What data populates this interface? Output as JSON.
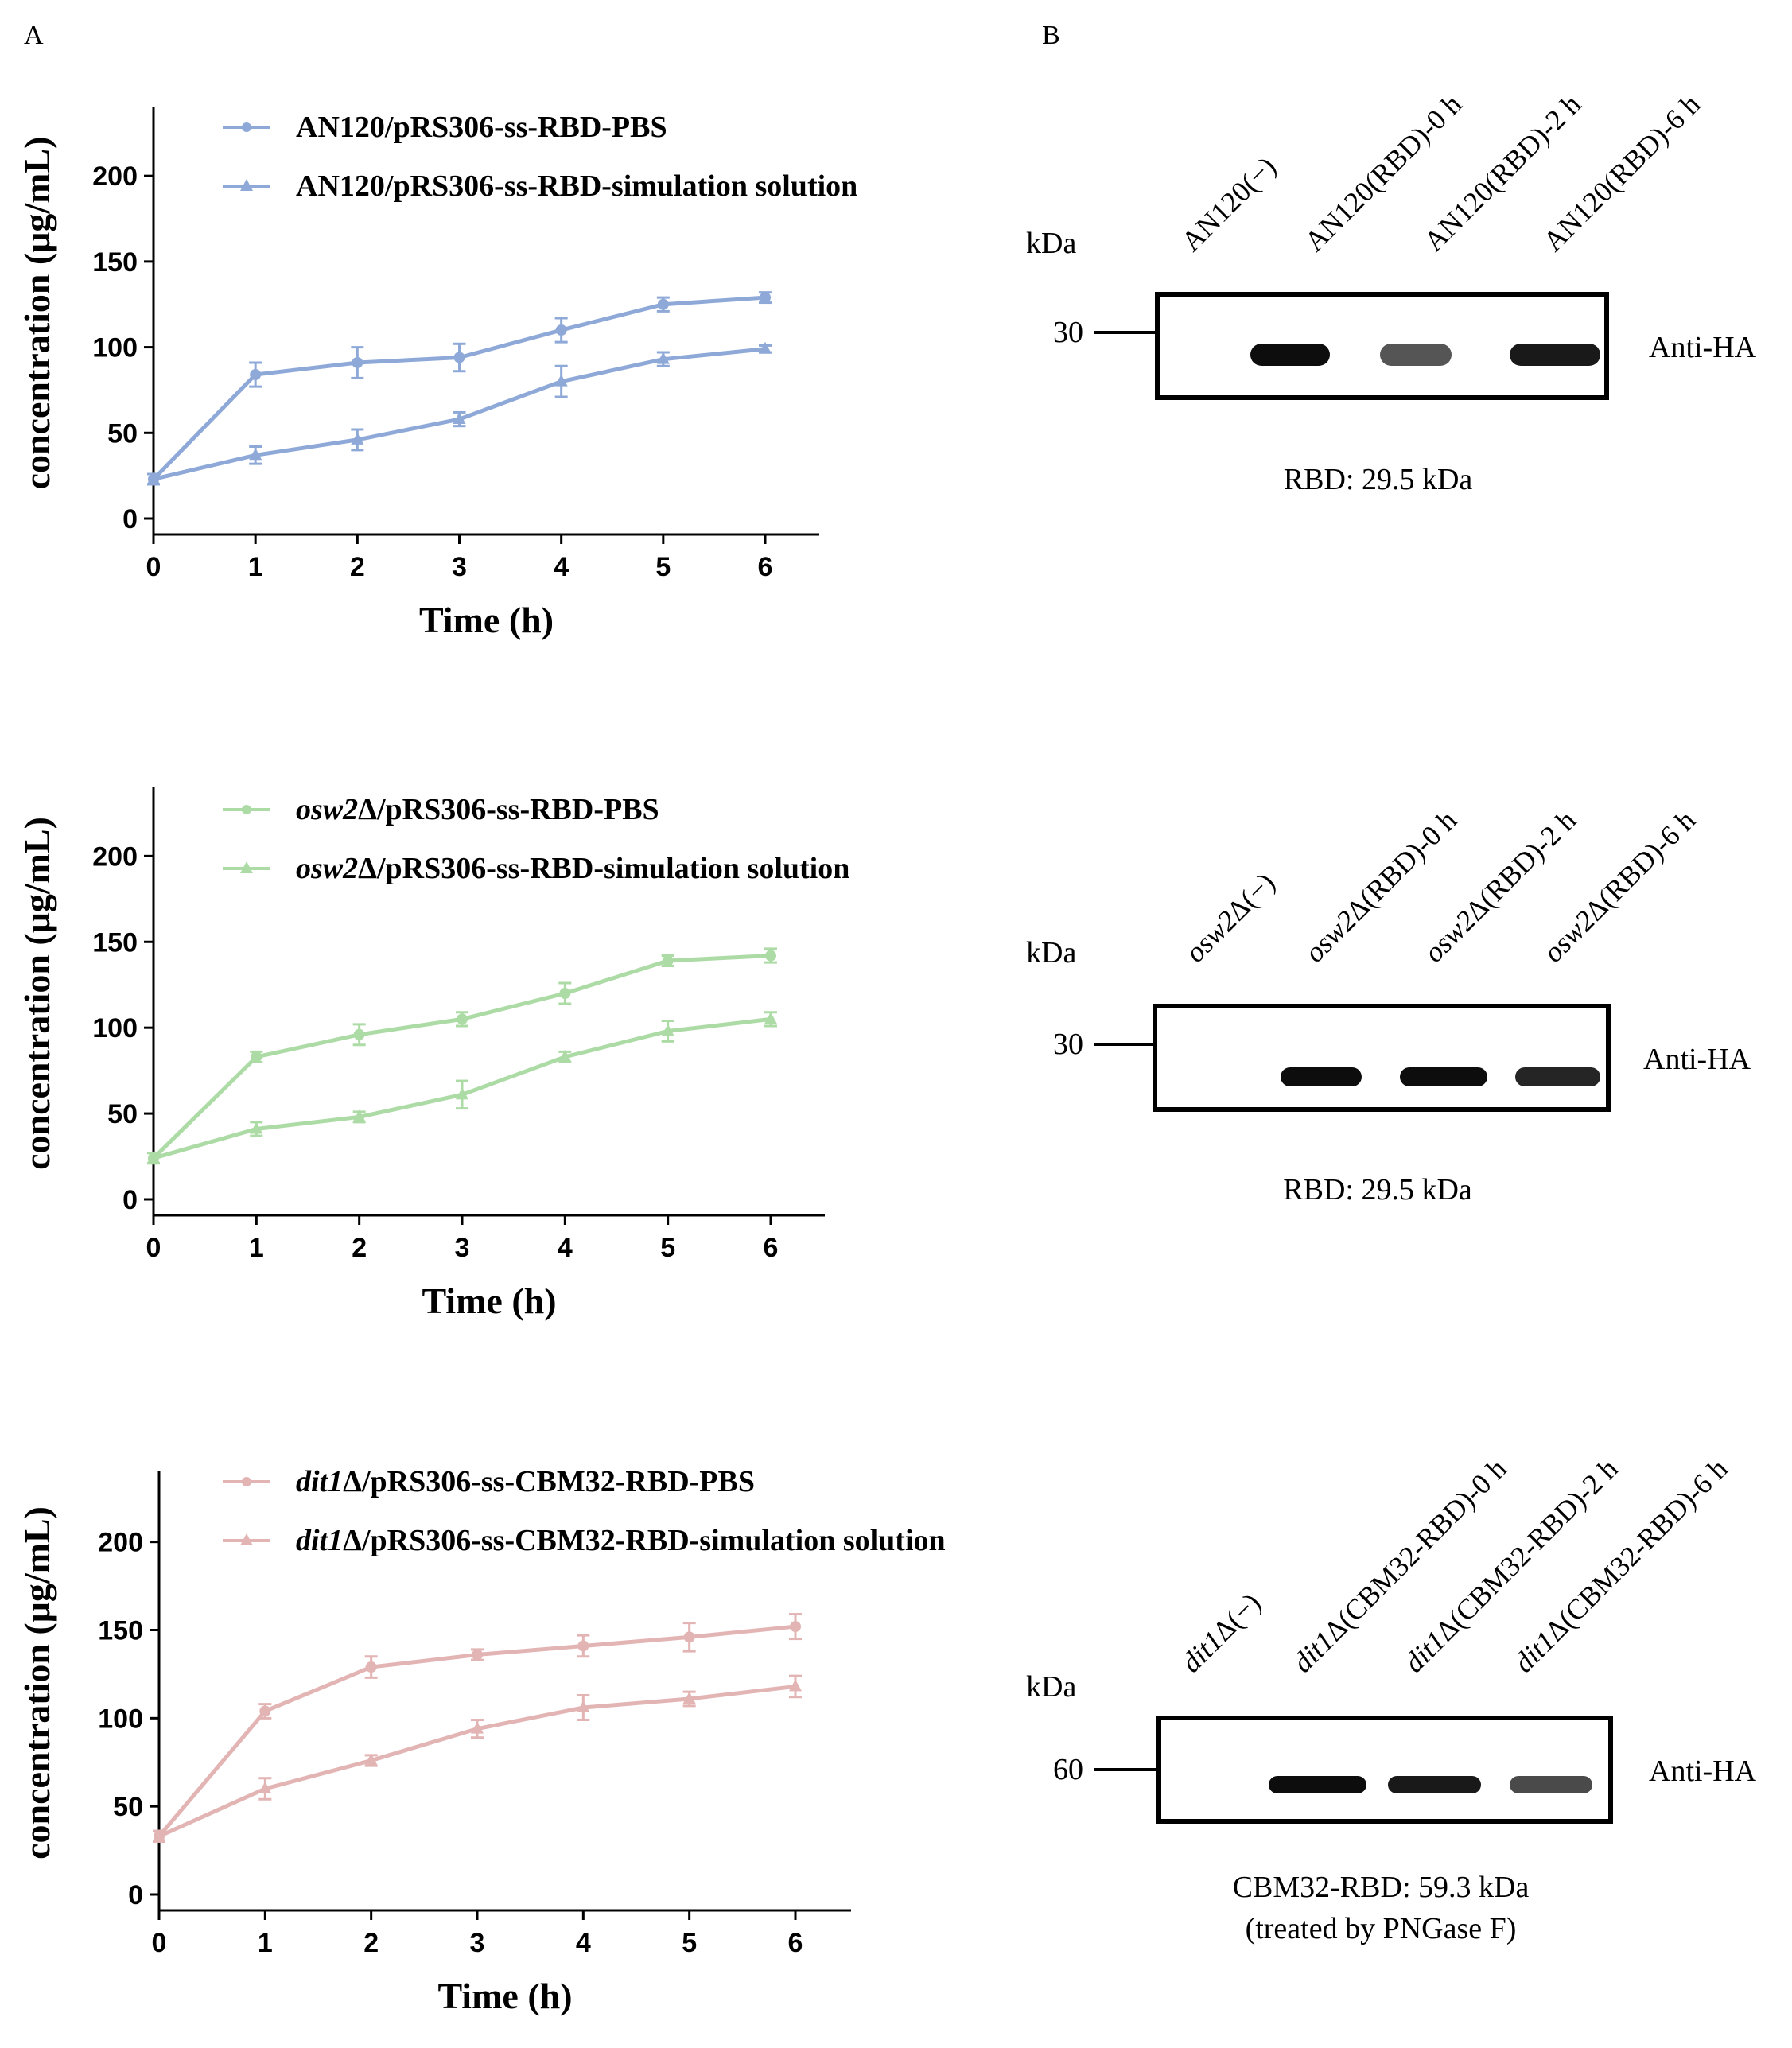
{
  "panel_labels": {
    "a": "A",
    "b": "B"
  },
  "chart_data": [
    {
      "type": "line",
      "color": "#8ea9d8",
      "xlabel": "Time (h)",
      "ylabel": "concentration (μg/mL)",
      "x": [
        0,
        1,
        2,
        3,
        4,
        5,
        6
      ],
      "xlim": [
        0,
        6.5
      ],
      "ylim": [
        0,
        240
      ],
      "yticks": [
        0,
        50,
        100,
        150,
        200
      ],
      "series": [
        {
          "name": "AN120/pRS306-ss-RBD-PBS",
          "marker": "circle",
          "values": [
            23,
            84,
            91,
            94,
            110,
            125,
            129
          ],
          "errors": [
            3,
            7,
            9,
            8,
            7,
            4,
            3
          ]
        },
        {
          "name": "AN120/pRS306-ss-RBD-simulation solution",
          "marker": "triangle",
          "values": [
            23,
            37,
            46,
            58,
            80,
            93,
            99
          ],
          "errors": [
            3,
            5,
            6,
            4,
            9,
            4,
            2
          ]
        }
      ],
      "legend": [
        {
          "prefix": "AN120",
          "italic": "",
          "suffix": "/pRS306-ss-RBD-PBS"
        },
        {
          "prefix": "AN120",
          "italic": "",
          "suffix": "/pRS306-ss-RBD-simulation solution"
        }
      ]
    },
    {
      "type": "line",
      "color": "#addba6",
      "xlabel": "Time (h)",
      "ylabel": "concentration (μg/mL)",
      "x": [
        0,
        1,
        2,
        3,
        4,
        5,
        6
      ],
      "xlim": [
        0,
        6.5
      ],
      "ylim": [
        0,
        240
      ],
      "yticks": [
        0,
        50,
        100,
        150,
        200
      ],
      "series": [
        {
          "name": "osw2Δ/pRS306-ss-RBD-PBS",
          "marker": "circle",
          "values": [
            24,
            83,
            96,
            105,
            120,
            139,
            142
          ],
          "errors": [
            3,
            3,
            6,
            4,
            6,
            3,
            4
          ]
        },
        {
          "name": "osw2Δ/pRS306-ss-RBD-simulation solution",
          "marker": "triangle",
          "values": [
            24,
            41,
            48,
            61,
            83,
            98,
            105
          ],
          "errors": [
            3,
            4,
            3,
            8,
            3,
            6,
            4
          ]
        }
      ],
      "legend": [
        {
          "prefix": "",
          "italic": "osw2",
          "suffix": "Δ/pRS306-ss-RBD-PBS"
        },
        {
          "prefix": "",
          "italic": "osw2",
          "suffix": "Δ/pRS306-ss-RBD-simulation solution"
        }
      ]
    },
    {
      "type": "line",
      "color": "#e3b4b4",
      "xlabel": "Time (h)",
      "ylabel": "concentration (μg/mL)",
      "x": [
        0,
        1,
        2,
        3,
        4,
        5,
        6
      ],
      "xlim": [
        0,
        6.5
      ],
      "ylim": [
        0,
        240
      ],
      "yticks": [
        0,
        50,
        100,
        150,
        200
      ],
      "series": [
        {
          "name": "dit1Δ/pRS306-ss-CBM32-RBD-PBS",
          "marker": "circle",
          "values": [
            33,
            104,
            129,
            136,
            141,
            146,
            152
          ],
          "errors": [
            3,
            4,
            6,
            3,
            6,
            8,
            7
          ]
        },
        {
          "name": "dit1Δ/pRS306-ss-CBM32-RBD-simulation solution",
          "marker": "triangle",
          "values": [
            33,
            60,
            76,
            94,
            106,
            111,
            118
          ],
          "errors": [
            3,
            6,
            3,
            5,
            7,
            4,
            6
          ]
        }
      ],
      "legend": [
        {
          "prefix": "",
          "italic": "dit1",
          "suffix": "Δ/pRS306-ss-CBM32-RBD-PBS"
        },
        {
          "prefix": "",
          "italic": "dit1",
          "suffix": "Δ/pRS306-ss-CBM32-RBD-simulation solution"
        }
      ]
    }
  ],
  "blots": [
    {
      "kda_label": "kDa",
      "marker_value": "30",
      "antibody": "Anti-HA",
      "caption": [
        "RBD:   29.5 kDa"
      ],
      "lanes": [
        {
          "italic": "",
          "text": "AN120(−)"
        },
        {
          "italic": "",
          "text": "AN120(RBD)-0 h"
        },
        {
          "italic": "",
          "text": "AN120(RBD)-2 h"
        },
        {
          "italic": "",
          "text": "AN120(RBD)-6 h"
        }
      ]
    },
    {
      "kda_label": "kDa",
      "marker_value": "30",
      "antibody": "Anti-HA",
      "caption": [
        "RBD:   29.5 kDa"
      ],
      "lanes": [
        {
          "italic": "osw2",
          "text": "Δ(−)"
        },
        {
          "italic": "osw2",
          "text": "Δ(RBD)-0 h"
        },
        {
          "italic": "osw2",
          "text": "Δ(RBD)-2 h"
        },
        {
          "italic": "osw2",
          "text": "Δ(RBD)-6 h"
        }
      ]
    },
    {
      "kda_label": "kDa",
      "marker_value": "60",
      "antibody": "Anti-HA",
      "caption": [
        "CBM32-RBD:   59.3 kDa",
        "(treated by PNGase F)"
      ],
      "lanes": [
        {
          "italic": "dit1",
          "text": "Δ(−)"
        },
        {
          "italic": "dit1",
          "text": "Δ(CBM32-RBD)-0 h"
        },
        {
          "italic": "dit1",
          "text": "Δ(CBM32-RBD)-2 h"
        },
        {
          "italic": "dit1",
          "text": "Δ(CBM32-RBD)-6 h"
        }
      ]
    }
  ]
}
